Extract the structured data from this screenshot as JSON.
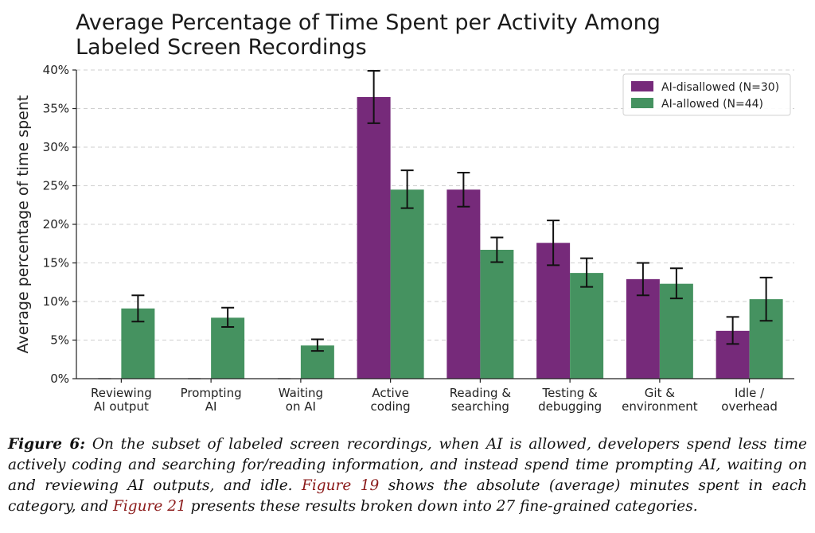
{
  "chart_data": {
    "type": "bar",
    "title_lines": [
      "Average Percentage of Time Spent per Activity Among",
      "Labeled Screen Recordings"
    ],
    "xlabel": "",
    "ylabel": "Average percentage of time spent",
    "ylim": [
      0,
      40
    ],
    "yticks": [
      0,
      5,
      10,
      15,
      20,
      25,
      30,
      35,
      40
    ],
    "ytick_labels": [
      "0%",
      "5%",
      "10%",
      "15%",
      "20%",
      "25%",
      "30%",
      "35%",
      "40%"
    ],
    "grid": "horizontal dashed",
    "legend_position": "top-right",
    "categories": [
      [
        "Reviewing",
        "AI output"
      ],
      [
        "Prompting",
        "AI"
      ],
      [
        "Waiting",
        "on AI"
      ],
      [
        "Active",
        "coding"
      ],
      [
        "Reading &",
        "searching"
      ],
      [
        "Testing &",
        "debugging"
      ],
      [
        "Git &",
        "environment"
      ],
      [
        "Idle /",
        "overhead"
      ]
    ],
    "series": [
      {
        "name": "AI-disallowed (N=30)",
        "color": "#762a7a",
        "values": [
          0,
          0,
          0,
          36.5,
          24.5,
          17.6,
          12.9,
          6.2
        ],
        "error_low": [
          0,
          0,
          0,
          33.1,
          22.3,
          14.7,
          10.8,
          4.5
        ],
        "error_high": [
          0,
          0,
          0,
          39.9,
          26.7,
          20.5,
          15.0,
          8.0
        ]
      },
      {
        "name": "AI-allowed (N=44)",
        "color": "#459260",
        "values": [
          9.1,
          7.9,
          4.3,
          24.5,
          16.7,
          13.7,
          12.3,
          10.3
        ],
        "error_low": [
          7.4,
          6.7,
          3.6,
          22.1,
          15.1,
          11.9,
          10.4,
          7.5
        ],
        "error_high": [
          10.8,
          9.2,
          5.1,
          27.0,
          18.3,
          15.6,
          14.3,
          13.1
        ]
      }
    ]
  },
  "caption": {
    "label": "Figure 6:",
    "text_1": " On the subset of labeled screen recordings, when AI is allowed, developers spend less time actively coding and searching for/reading information, and instead spend time prompting AI, waiting on and reviewing AI outputs, and idle. ",
    "ref_1": "Figure 19",
    "text_2": " shows the absolute (average) minutes spent in each category, and ",
    "ref_2": "Figure 21",
    "text_3": " presents these results broken down into 27 fine-grained categories."
  }
}
